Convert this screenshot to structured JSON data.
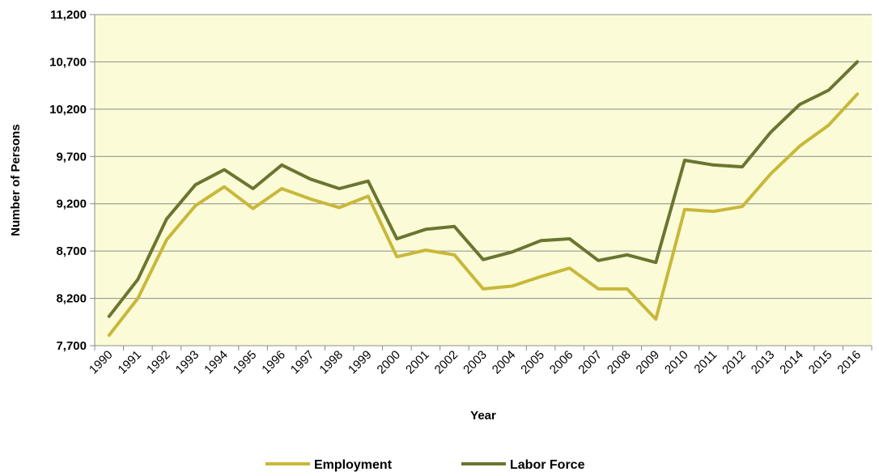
{
  "chart_data": {
    "type": "line",
    "xlabel": "Year",
    "ylabel": "Number of Persons",
    "ylim": [
      7700,
      11200
    ],
    "yticks": [
      7700,
      8200,
      8700,
      9200,
      9700,
      10200,
      10700,
      11200
    ],
    "ytick_labels": [
      "7,700",
      "8,200",
      "8,700",
      "9,200",
      "9,700",
      "10,200",
      "10,700",
      "11,200"
    ],
    "categories": [
      "1990",
      "1991",
      "1992",
      "1993",
      "1994",
      "1995",
      "1996",
      "1997",
      "1998",
      "1999",
      "2000",
      "2001",
      "2002",
      "2003",
      "2004",
      "2005",
      "2006",
      "2007",
      "2008",
      "2009",
      "2010",
      "2011",
      "2012",
      "2013",
      "2014",
      "2015",
      "2016"
    ],
    "grid": "horizontal",
    "legend_position": "bottom",
    "plot_background": "#fbfbd7",
    "series": [
      {
        "name": "Employment",
        "color": "#c8b83a",
        "values": [
          7810,
          8200,
          8820,
          9180,
          9380,
          9150,
          9360,
          9250,
          9160,
          9280,
          8640,
          8710,
          8660,
          8300,
          8330,
          8430,
          8520,
          8300,
          8300,
          7980,
          9140,
          9120,
          9170,
          9520,
          9810,
          10030,
          10360
        ]
      },
      {
        "name": "Labor Force",
        "color": "#6b7530",
        "values": [
          8010,
          8400,
          9040,
          9400,
          9560,
          9360,
          9610,
          9460,
          9360,
          9440,
          8830,
          8930,
          8960,
          8610,
          8690,
          8810,
          8830,
          8600,
          8660,
          8580,
          9660,
          9610,
          9590,
          9960,
          10250,
          10400,
          10700
        ]
      }
    ]
  }
}
